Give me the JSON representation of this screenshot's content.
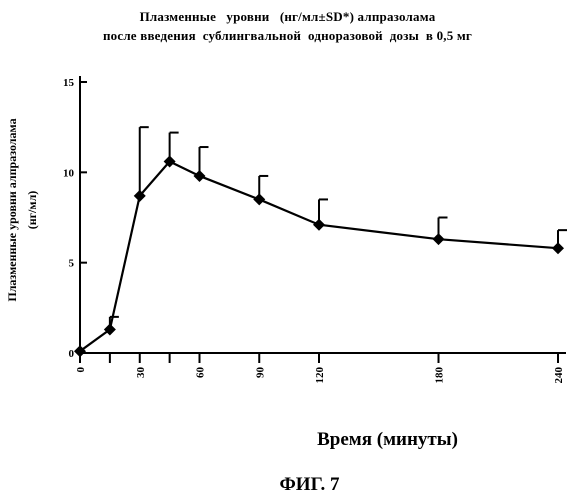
{
  "title_line1": "Плазменные   уровни   (нг/мл±SD*) алпразолама",
  "title_line2": "после введения  сублингвальной  одноразовой  дозы  в 0,5 мг",
  "ylabel_line1": "Плазменные   уровни   алпразолама",
  "ylabel_line2": "(нг/мл)",
  "xlabel": "Время (минуты)",
  "figure_label": "ФИГ. 7",
  "chart_data": {
    "type": "line",
    "title": "Плазменные   уровни   (нг/мл±SD*) алпразолама после введения  сублингвальной  одноразовой  дозы  в 0,5 мг",
    "xlabel": "Время (минуты)",
    "ylabel": "Плазменные   уровни   алпразолама (нг/мл)",
    "x": [
      0,
      15,
      30,
      45,
      60,
      90,
      120,
      180,
      240
    ],
    "y": [
      0.1,
      1.3,
      8.7,
      10.6,
      9.8,
      8.5,
      7.1,
      6.3,
      5.8
    ],
    "error_upper": [
      null,
      2.0,
      12.5,
      12.2,
      11.4,
      9.8,
      8.5,
      7.5,
      6.8
    ],
    "xticks": [
      0,
      15,
      30,
      45,
      60,
      90,
      120,
      180,
      240
    ],
    "xtick_labels": [
      "0",
      "",
      "30",
      "",
      "60",
      "90",
      "120",
      "180",
      "240"
    ],
    "yticks": [
      0,
      5,
      10,
      15
    ],
    "ytick_labels": [
      "0",
      "5",
      "10",
      "15"
    ],
    "xlim": [
      0,
      240
    ],
    "ylim": [
      0,
      15
    ],
    "grid": false,
    "marker": "diamond",
    "color": "#000000"
  }
}
